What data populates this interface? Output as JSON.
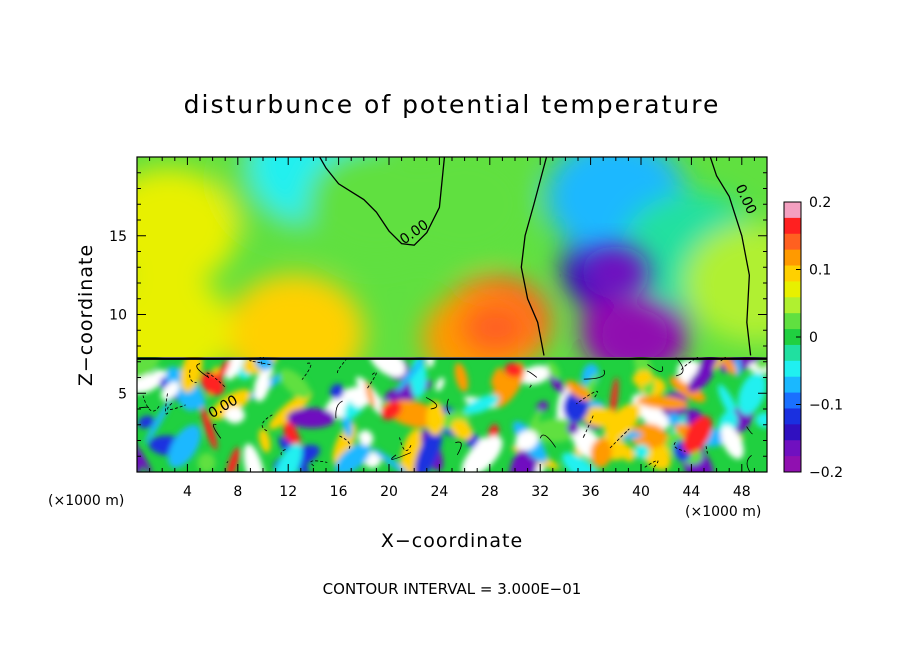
{
  "chart_data": {
    "type": "heatmap",
    "title": "disturbunce of potential temperature",
    "xlabel": "X−coordinate",
    "ylabel": "Z−coordinate",
    "x_unit_note": "(×1000 m)",
    "y_unit_note": "(×1000 m)",
    "xlim": [
      0,
      50
    ],
    "ylim": [
      0,
      20
    ],
    "x_ticks": [
      4,
      8,
      12,
      16,
      20,
      24,
      28,
      32,
      36,
      40,
      44,
      48
    ],
    "x_tick_labels": [
      "4",
      "8",
      "12",
      "16",
      "20",
      "24",
      "28",
      "32",
      "36",
      "40",
      "44",
      "48"
    ],
    "y_ticks": [
      5,
      10,
      15
    ],
    "y_tick_labels": [
      "5",
      "10",
      "15"
    ],
    "colorbar": {
      "range": [
        -0.2,
        0.2
      ],
      "tick_values": [
        0.2,
        0.1,
        0,
        -0.1,
        -0.2
      ],
      "tick_labels": [
        "0.2",
        "0.1",
        "0",
        "−0.1",
        "−0.2"
      ],
      "colors": [
        "#f4a0c0",
        "#ff2020",
        "#ff6020",
        "#ff9a00",
        "#ffd000",
        "#e8f000",
        "#b0f030",
        "#60e040",
        "#20d040",
        "#20e0a0",
        "#20f0f0",
        "#1ab8ff",
        "#1a70ff",
        "#1a30e0",
        "#3010c0",
        "#7010c0",
        "#9010b0"
      ]
    },
    "contour_labels": [
      "0.00",
      "0.00",
      "0.00"
    ],
    "zero_contour": [
      {
        "x": [
          14.5,
          15,
          15.5,
          16,
          17,
          18,
          19,
          20,
          21,
          22,
          23,
          24,
          24.4
        ],
        "y": [
          20,
          19.3,
          18.8,
          18.3,
          17.8,
          17.3,
          16.5,
          15.3,
          14.5,
          14.4,
          15.2,
          16.8,
          20
        ]
      },
      {
        "x": [
          32.5,
          32,
          31.5,
          30.8,
          30.5,
          31,
          31.8,
          32.3
        ],
        "y": [
          20,
          18.5,
          17,
          15,
          13,
          11,
          9.5,
          7.4
        ]
      },
      {
        "x": [
          45.5,
          46,
          47,
          48,
          48.6,
          48.4,
          48.7
        ],
        "y": [
          20,
          18.8,
          17.5,
          15,
          12.5,
          9.5,
          7.4
        ]
      }
    ],
    "upper_field": [
      {
        "x": 2.5,
        "z": 15.5,
        "value": 0.07
      },
      {
        "x": 12.5,
        "z": 18.5,
        "value": 0.03
      },
      {
        "x": 14.5,
        "z": 19.5,
        "value": -0.04
      },
      {
        "x": 19,
        "z": 17,
        "value": 0.02
      },
      {
        "x": 26,
        "z": 17,
        "value": 0.02
      },
      {
        "x": 28.5,
        "z": 9.5,
        "value": 0.13
      },
      {
        "x": 27,
        "z": 8.5,
        "value": 0.12
      },
      {
        "x": 12.5,
        "z": 8.8,
        "value": 0.1
      },
      {
        "x": 2,
        "z": 9,
        "value": 0.06
      },
      {
        "x": 38,
        "z": 13,
        "value": -0.15
      },
      {
        "x": 39.5,
        "z": 9,
        "value": -0.19
      },
      {
        "x": 38,
        "z": 17.5,
        "value": -0.08
      },
      {
        "x": 44,
        "z": 14,
        "value": -0.02
      },
      {
        "x": 49,
        "z": 12,
        "value": 0.04
      }
    ],
    "boundary_layer_top": 7.2,
    "annotation": "CONTOUR INTERVAL = 3.000E−01"
  }
}
